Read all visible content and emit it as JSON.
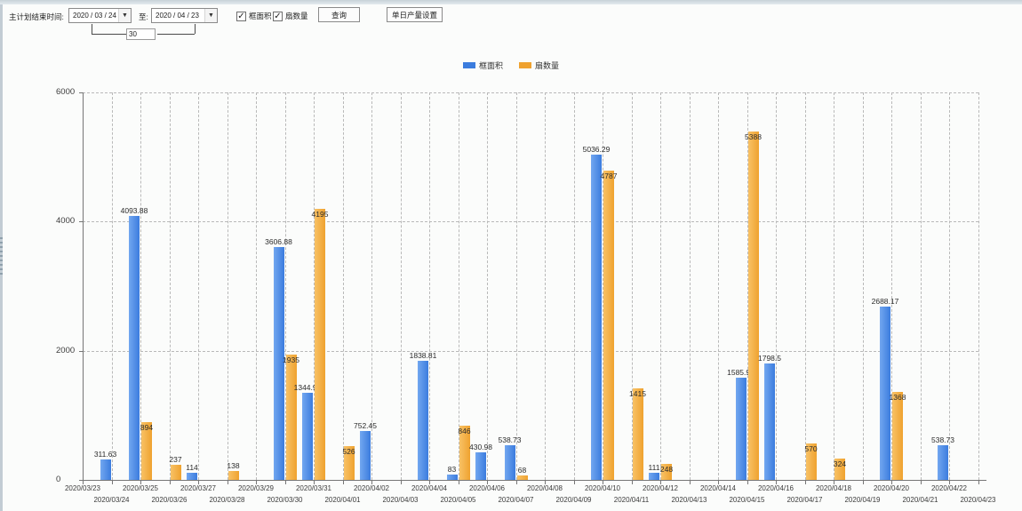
{
  "icons": {
    "dropdown_arrow": "▼",
    "check": "✓"
  },
  "toolbar": {
    "plan_end_label": "主计划结束时间:",
    "date_from": "2020 / 03 / 24",
    "to_label": "至:",
    "date_to": "2020 / 04 / 23",
    "days_value": "30",
    "checkboxes": [
      {
        "label": "框面积",
        "checked": true
      },
      {
        "label": "扇数量",
        "checked": true
      }
    ],
    "query_label": "查询",
    "daily_output_label": "单日产量设置"
  },
  "chart_data": {
    "type": "bar",
    "title": "",
    "legend_position": "top-center",
    "grid": "dashed",
    "ylim": [
      0,
      6000
    ],
    "yticks": [
      0,
      2000,
      4000,
      6000
    ],
    "series": [
      {
        "key": "frame_area",
        "name": "框面积",
        "color": "#3b7cde",
        "color_light": "#72a7f0"
      },
      {
        "key": "fan_count",
        "name": "扇数量",
        "color": "#efa22f",
        "color_light": "#f8c266"
      }
    ],
    "days": [
      {
        "date": "2020/03/23"
      },
      {
        "date": "2020/03/24",
        "frame_area": 311.63
      },
      {
        "date": "2020/03/25",
        "frame_area": 4093.88,
        "fan_count": 894
      },
      {
        "date": "2020/03/26",
        "fan_count": 237
      },
      {
        "date": "2020/03/27",
        "frame_area": 114
      },
      {
        "date": "2020/03/28",
        "fan_count": 138
      },
      {
        "date": "2020/03/29"
      },
      {
        "date": "2020/03/30",
        "frame_area": 3606.88,
        "fan_count": 1935
      },
      {
        "date": "2020/03/31",
        "frame_area": 1344.95,
        "fan_count": 4195
      },
      {
        "date": "2020/04/01",
        "fan_count": 526
      },
      {
        "date": "2020/04/02",
        "frame_area": 752.45
      },
      {
        "date": "2020/04/03"
      },
      {
        "date": "2020/04/04",
        "frame_area": 1838.81
      },
      {
        "date": "2020/04/05",
        "frame_area": 83,
        "fan_count": 846
      },
      {
        "date": "2020/04/06",
        "frame_area": 430.98
      },
      {
        "date": "2020/04/07",
        "frame_area": 538.73,
        "fan_count": 68
      },
      {
        "date": "2020/04/08"
      },
      {
        "date": "2020/04/09"
      },
      {
        "date": "2020/04/10",
        "frame_area": 5036.29,
        "fan_count": 4787
      },
      {
        "date": "2020/04/11",
        "fan_count": 1415
      },
      {
        "date": "2020/04/12",
        "frame_area": 111,
        "fan_count": 248
      },
      {
        "date": "2020/04/13"
      },
      {
        "date": "2020/04/14"
      },
      {
        "date": "2020/04/15",
        "frame_area": 1585.96,
        "fan_count": 5388
      },
      {
        "date": "2020/04/16",
        "frame_area": 1798.5
      },
      {
        "date": "2020/04/17",
        "fan_count": 570
      },
      {
        "date": "2020/04/18",
        "fan_count": 324
      },
      {
        "date": "2020/04/19"
      },
      {
        "date": "2020/04/20",
        "frame_area": 2688.17,
        "fan_count": 1368
      },
      {
        "date": "2020/04/21"
      },
      {
        "date": "2020/04/22",
        "frame_area": 538.73
      },
      {
        "date": "2020/04/23"
      }
    ]
  }
}
